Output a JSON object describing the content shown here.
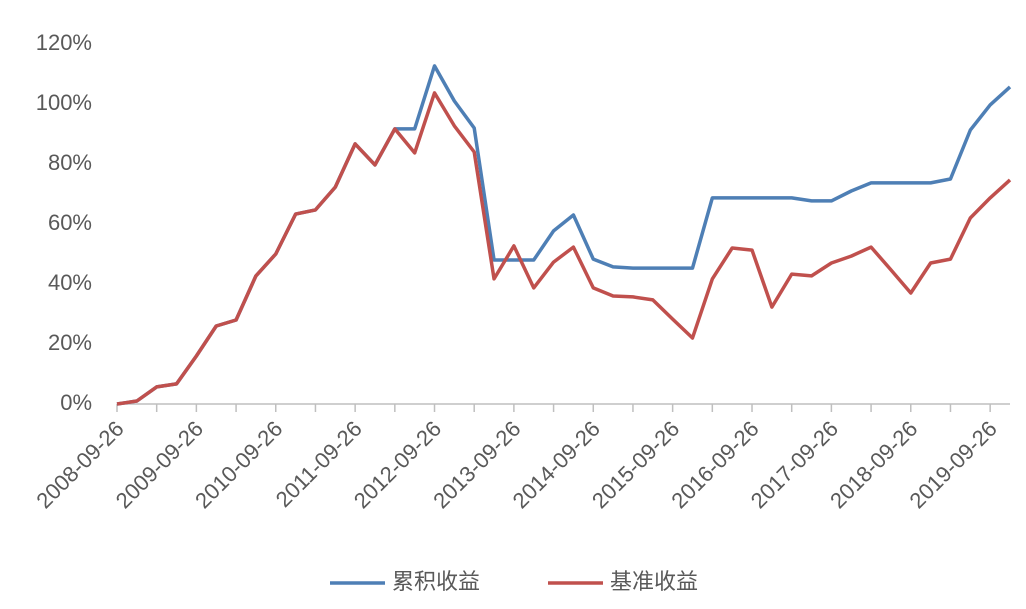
{
  "chart_data": {
    "type": "line",
    "categories": [
      "2008-09-26",
      null,
      null,
      null,
      "2009-09-26",
      null,
      null,
      null,
      "2010-09-26",
      null,
      null,
      null,
      "2011-09-26",
      null,
      null,
      null,
      "2012-09-26",
      null,
      null,
      null,
      "2013-09-26",
      null,
      null,
      null,
      "2014-09-26",
      null,
      null,
      null,
      "2015-09-26",
      null,
      null,
      null,
      "2016-09-26",
      null,
      null,
      null,
      "2017-09-26",
      null,
      null,
      null,
      "2018-09-26",
      null,
      null,
      null,
      "2019-09-26",
      null
    ],
    "series": [
      {
        "name": "累积收益",
        "color": "#4e7fb5",
        "values": [
          0,
          1,
          5.7,
          6.7,
          16,
          26,
          28,
          42.7,
          50,
          63.3,
          64.7,
          72.3,
          86.7,
          79.7,
          91.7,
          91.7,
          112.7,
          101,
          92,
          48,
          48,
          48,
          57.7,
          63,
          48.3,
          45.7,
          45.3,
          45.3,
          45.3,
          45.3,
          68.7,
          68.7,
          68.7,
          68.7,
          68.7,
          67.7,
          67.7,
          71,
          73.7,
          73.7,
          73.7,
          73.7,
          75,
          91.3,
          99.7,
          105.7
        ]
      },
      {
        "name": "基准收益",
        "color": "#c0504d",
        "values": [
          0,
          1,
          5.7,
          6.7,
          16,
          26,
          28,
          42.7,
          50,
          63.3,
          64.7,
          72.3,
          86.7,
          79.7,
          91.7,
          83.7,
          103.7,
          92.7,
          84,
          41.7,
          52.7,
          38.7,
          47.3,
          52.3,
          38.7,
          36,
          35.7,
          34.7,
          28.3,
          22,
          41.7,
          52,
          51.3,
          32.3,
          43.3,
          42.7,
          47,
          49.3,
          52.3,
          44.7,
          37,
          47,
          48.3,
          62,
          68.7,
          74.7
        ]
      }
    ],
    "ylim": [
      0,
      120
    ],
    "yticks": [
      {
        "value": 0,
        "label": "0%"
      },
      {
        "value": 20,
        "label": "20%"
      },
      {
        "value": 40,
        "label": "40%"
      },
      {
        "value": 60,
        "label": "60%"
      },
      {
        "value": 80,
        "label": "80%"
      },
      {
        "value": 100,
        "label": "100%"
      },
      {
        "value": 120,
        "label": "120%"
      }
    ],
    "grid": false,
    "legend": "bottom"
  }
}
